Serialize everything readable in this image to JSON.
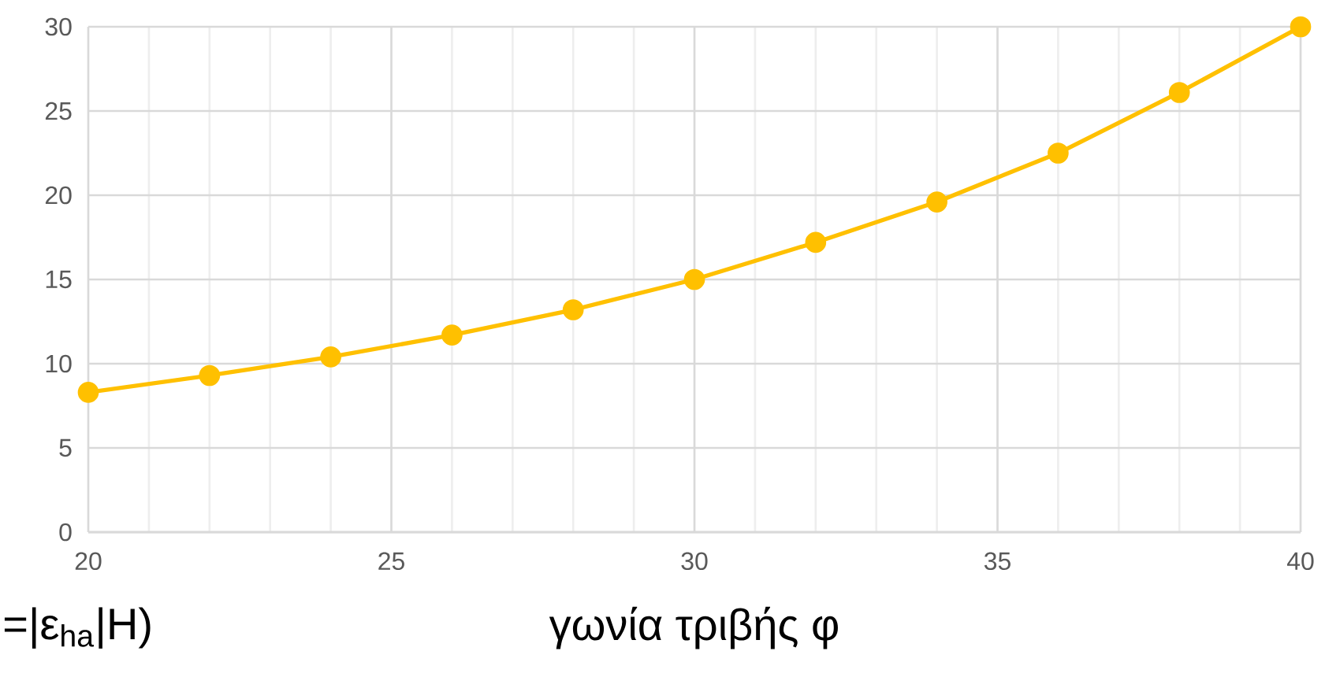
{
  "chart_data": {
    "type": "line",
    "xlabel": "γωνία τριβής φ",
    "annotations": [
      "=|ε$_{ha}$|H)"
    ],
    "x": [
      20,
      22,
      24,
      26,
      28,
      30,
      32,
      34,
      36,
      38,
      40
    ],
    "series": [
      {
        "color": "#ffc000",
        "values": [
          8.3,
          9.3,
          10.4,
          11.7,
          13.2,
          15.0,
          17.2,
          19.6,
          22.5,
          26.1,
          30
        ]
      }
    ],
    "xlim": [
      20,
      40
    ],
    "xticks": [
      20,
      25,
      30,
      35,
      40
    ],
    "ylim": [
      0,
      30
    ],
    "yticks": [
      0,
      5,
      10,
      15,
      20,
      25,
      30
    ],
    "grid": true,
    "marker": "circle",
    "line_style": "solid"
  }
}
